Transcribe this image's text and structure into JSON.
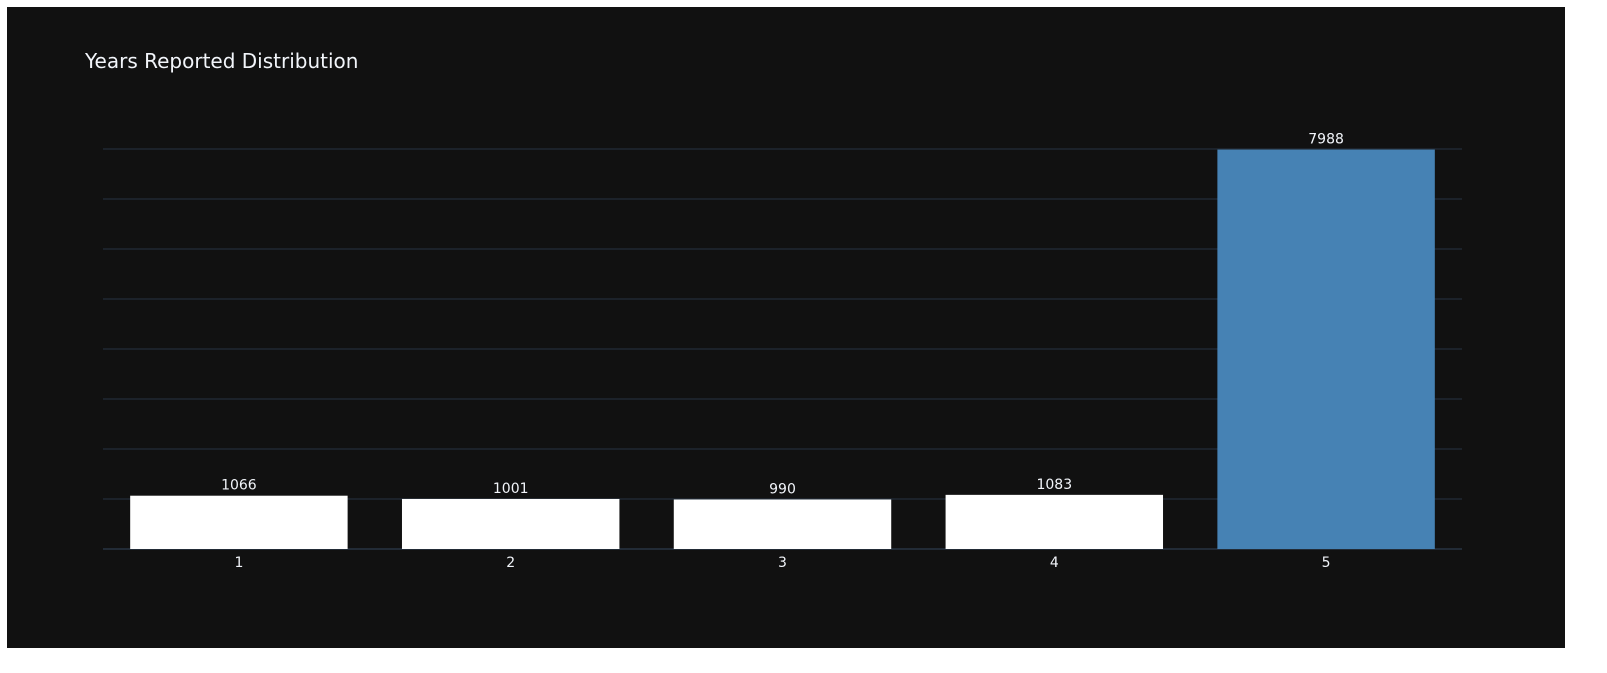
{
  "chart_data": {
    "type": "bar",
    "title": "Years Reported Distribution",
    "xlabel": "",
    "ylabel": "",
    "categories": [
      "1",
      "2",
      "3",
      "4",
      "5"
    ],
    "values": [
      1066,
      1001,
      990,
      1083,
      7988
    ],
    "data_labels": [
      "1066",
      "1001",
      "990",
      "1083",
      "7988"
    ],
    "ylim": [
      0,
      8000
    ],
    "grid": true,
    "y_tick_labels_shown": false,
    "colors": {
      "background": "#111111",
      "default_bar": "#ffffff",
      "highlight_bar": "#4682b4",
      "gridline": "#283442",
      "text": "#f2f5fa"
    },
    "highlight_category": "5"
  }
}
